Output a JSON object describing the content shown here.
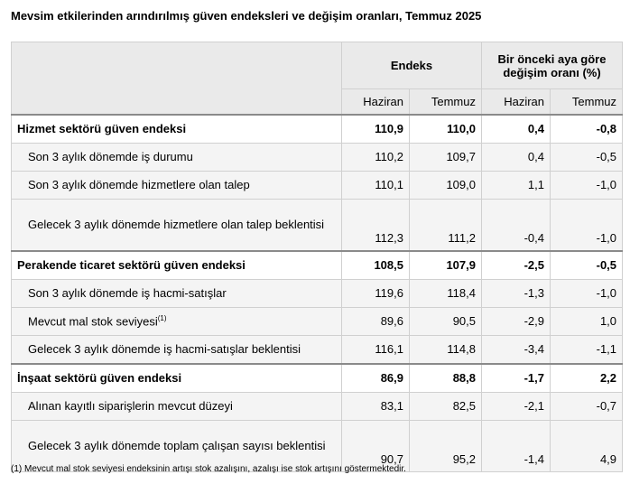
{
  "title": "Mevsim etkilerinden arındırılmış güven endeksleri ve değişim oranları, Temmuz 2025",
  "header": {
    "endeks": "Endeks",
    "change_line1": "Bir önceki aya göre",
    "change_line2": "değişim oranı (%)",
    "haziran": "Haziran",
    "temmuz": "Temmuz"
  },
  "rows": [
    {
      "label": "Hizmet sektörü güven endeksi",
      "e_haz": "110,9",
      "e_tem": "110,0",
      "d_haz": "0,4",
      "d_tem": "-0,8"
    },
    {
      "label": "Son 3 aylık dönemde iş durumu",
      "e_haz": "110,2",
      "e_tem": "109,7",
      "d_haz": "0,4",
      "d_tem": "-0,5"
    },
    {
      "label": "Son 3 aylık dönemde hizmetlere olan talep",
      "e_haz": "110,1",
      "e_tem": "109,0",
      "d_haz": "1,1",
      "d_tem": "-1,0"
    },
    {
      "label": "Gelecek 3 aylık dönemde hizmetlere olan talep beklentisi",
      "e_haz": "112,3",
      "e_tem": "111,2",
      "d_haz": "-0,4",
      "d_tem": "-1,0"
    },
    {
      "label": "Perakende ticaret sektörü güven endeksi",
      "e_haz": "108,5",
      "e_tem": "107,9",
      "d_haz": "-2,5",
      "d_tem": "-0,5"
    },
    {
      "label": "Son 3 aylık dönemde iş hacmi-satışlar",
      "e_haz": "119,6",
      "e_tem": "118,4",
      "d_haz": "-1,3",
      "d_tem": "-1,0"
    },
    {
      "label": "Mevcut mal stok seviyesi",
      "sup": "(1)",
      "e_haz": "89,6",
      "e_tem": "90,5",
      "d_haz": "-2,9",
      "d_tem": "1,0"
    },
    {
      "label": "Gelecek 3 aylık dönemde iş hacmi-satışlar beklentisi",
      "e_haz": "116,1",
      "e_tem": "114,8",
      "d_haz": "-3,4",
      "d_tem": "-1,1"
    },
    {
      "label": "İnşaat sektörü güven endeksi",
      "e_haz": "86,9",
      "e_tem": "88,8",
      "d_haz": "-1,7",
      "d_tem": "2,2"
    },
    {
      "label": "Alınan kayıtlı siparişlerin mevcut düzeyi",
      "e_haz": "83,1",
      "e_tem": "82,5",
      "d_haz": "-2,1",
      "d_tem": "-0,7"
    },
    {
      "label": "Gelecek 3 aylık dönemde toplam çalışan sayısı beklentisi",
      "e_haz": "90,7",
      "e_tem": "95,2",
      "d_haz": "-1,4",
      "d_tem": "4,9"
    }
  ],
  "footnote": "(1) Mevcut mal stok seviyesi endeksinin artışı stok azalışını, azalışı ise stok artışını göstermektedir."
}
